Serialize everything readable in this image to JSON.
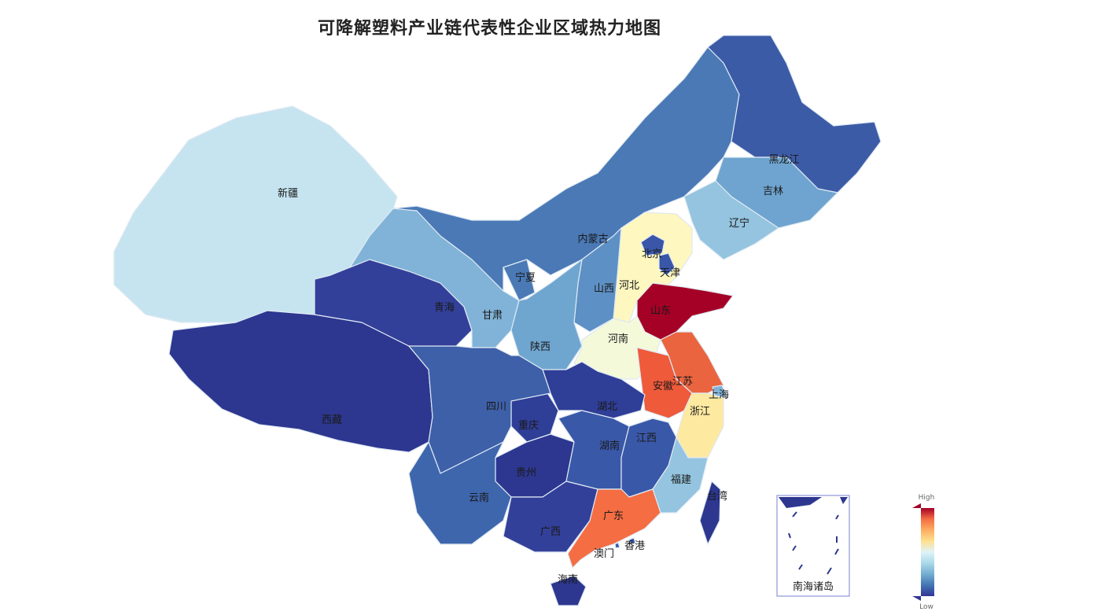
{
  "title": "可降解塑料产业链代表性企业区域热力地图",
  "provinces": [
    {
      "name": "新疆",
      "color": "#c5e4f0"
    },
    {
      "name": "西藏",
      "color": "#2d3790"
    },
    {
      "name": "青海",
      "color": "#33409a"
    },
    {
      "name": "甘肃",
      "color": "#80b3d7"
    },
    {
      "name": "内蒙古",
      "color": "#4a79b6"
    },
    {
      "name": "黑龙江",
      "color": "#3c5ba7"
    },
    {
      "name": "吉林",
      "color": "#6ea4cf"
    },
    {
      "name": "辽宁",
      "color": "#94c4df"
    },
    {
      "name": "河北",
      "color": "#fef7bf"
    },
    {
      "name": "北京",
      "color": "#3956a8"
    },
    {
      "name": "天津",
      "color": "#3956a8"
    },
    {
      "name": "山西",
      "color": "#5d90c4"
    },
    {
      "name": "宁夏",
      "color": "#4a79b6"
    },
    {
      "name": "陕西",
      "color": "#6fa6d0"
    },
    {
      "name": "山东",
      "color": "#a50026"
    },
    {
      "name": "河南",
      "color": "#f4f9da"
    },
    {
      "name": "江苏",
      "color": "#ea6440"
    },
    {
      "name": "安徽",
      "color": "#ee5a3a"
    },
    {
      "name": "上海",
      "color": "#80b3d7"
    },
    {
      "name": "浙江",
      "color": "#fde9a0"
    },
    {
      "name": "湖北",
      "color": "#2f3e96"
    },
    {
      "name": "重庆",
      "color": "#2f3e96"
    },
    {
      "name": "四川",
      "color": "#3e60a9"
    },
    {
      "name": "贵州",
      "color": "#2d3790"
    },
    {
      "name": "云南",
      "color": "#3e66ad"
    },
    {
      "name": "湖南",
      "color": "#3a58a8"
    },
    {
      "name": "江西",
      "color": "#3a58a8"
    },
    {
      "name": "福建",
      "color": "#94c4df"
    },
    {
      "name": "广西",
      "color": "#33409a"
    },
    {
      "name": "广东",
      "color": "#f46d43"
    },
    {
      "name": "香港",
      "color": "#3a58a8"
    },
    {
      "name": "澳门",
      "color": "#3a58a8"
    },
    {
      "name": "海南",
      "color": "#2d3790"
    },
    {
      "name": "台湾",
      "color": "#2d3790"
    }
  ],
  "inset": {
    "label": "南海诸岛",
    "color": "#2d3790"
  },
  "legend": {
    "high": "High",
    "low": "Low",
    "colors": [
      "#a50026",
      "#f46d43",
      "#fdae61",
      "#fee090",
      "#e0f3f8",
      "#abd9e9",
      "#74add1",
      "#4575b4",
      "#313695"
    ]
  }
}
